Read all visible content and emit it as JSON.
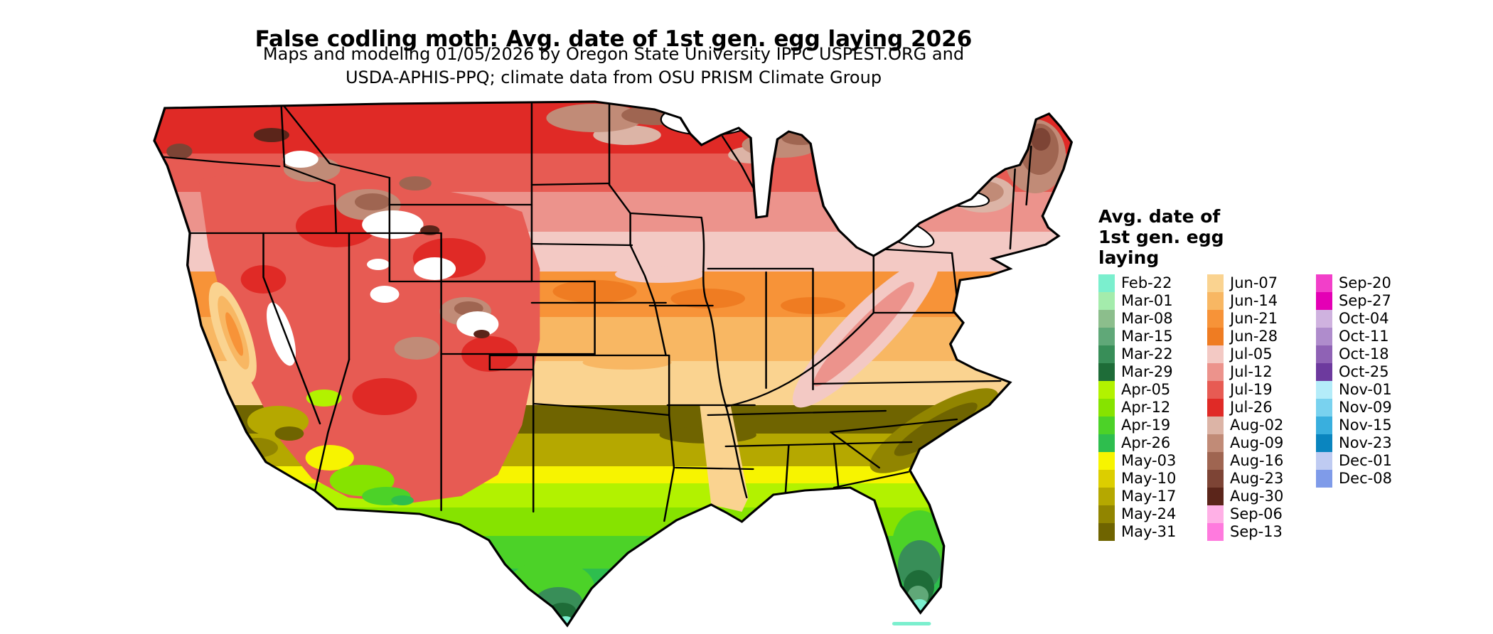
{
  "title": "False codling moth: Avg. date of 1st gen. egg laying 2026",
  "subtitle": {
    "line1": "Maps and modeling 01/05/2026 by Oregon State University IPPC USPEST.ORG and",
    "line2": "USDA-APHIS-PPQ; climate data from OSU PRISM Climate Group"
  },
  "map": {
    "region": "Continental United States",
    "no_data_color": "#FFFFFF",
    "border_color": "#000000"
  },
  "legend": {
    "title_lines": [
      "Avg. date of",
      "1st gen. egg",
      "laying"
    ],
    "columns": [
      [
        {
          "label": "Feb-22",
          "color": "#7BEFCE"
        },
        {
          "label": "Mar-01",
          "color": "#A4ECAC"
        },
        {
          "label": "Mar-08",
          "color": "#8CBE8C"
        },
        {
          "label": "Mar-15",
          "color": "#60A878"
        },
        {
          "label": "Mar-22",
          "color": "#388E58"
        },
        {
          "label": "Mar-29",
          "color": "#1E6C38"
        },
        {
          "label": "Apr-05",
          "color": "#B2F200"
        },
        {
          "label": "Apr-12",
          "color": "#86E300"
        },
        {
          "label": "Apr-19",
          "color": "#4CD228"
        },
        {
          "label": "Apr-26",
          "color": "#2EBE4E"
        },
        {
          "label": "May-03",
          "color": "#F7F400"
        },
        {
          "label": "May-10",
          "color": "#DCCE00"
        },
        {
          "label": "May-17",
          "color": "#B5A800"
        },
        {
          "label": "May-24",
          "color": "#918500"
        },
        {
          "label": "May-31",
          "color": "#6F6400"
        }
      ],
      [
        {
          "label": "Jun-07",
          "color": "#FAD390"
        },
        {
          "label": "Jun-14",
          "color": "#F8B763"
        },
        {
          "label": "Jun-21",
          "color": "#F79338"
        },
        {
          "label": "Jun-28",
          "color": "#EF7C22"
        },
        {
          "label": "Jul-05",
          "color": "#F3C9C4"
        },
        {
          "label": "Jul-12",
          "color": "#EC938C"
        },
        {
          "label": "Jul-19",
          "color": "#E75B53"
        },
        {
          "label": "Jul-26",
          "color": "#E02A26"
        },
        {
          "label": "Aug-02",
          "color": "#DCB4A6"
        },
        {
          "label": "Aug-09",
          "color": "#C18B77"
        },
        {
          "label": "Aug-16",
          "color": "#9F6551"
        },
        {
          "label": "Aug-23",
          "color": "#7D4435"
        },
        {
          "label": "Aug-30",
          "color": "#5B251A"
        },
        {
          "label": "Sep-06",
          "color": "#FFB0E6"
        },
        {
          "label": "Sep-13",
          "color": "#FF7ADE"
        }
      ],
      [
        {
          "label": "Sep-20",
          "color": "#F23FC9"
        },
        {
          "label": "Sep-27",
          "color": "#E400B5"
        },
        {
          "label": "Oct-04",
          "color": "#CFB2DF"
        },
        {
          "label": "Oct-11",
          "color": "#AF8CCC"
        },
        {
          "label": "Oct-18",
          "color": "#8F62B5"
        },
        {
          "label": "Oct-25",
          "color": "#6D3A9E"
        },
        {
          "label": "Nov-01",
          "color": "#B4ECF9"
        },
        {
          "label": "Nov-09",
          "color": "#79D2EF"
        },
        {
          "label": "Nov-15",
          "color": "#39AFDE"
        },
        {
          "label": "Nov-23",
          "color": "#0A85BF"
        },
        {
          "label": "Dec-01",
          "color": "#BFCBF2"
        },
        {
          "label": "Dec-08",
          "color": "#7F9BE9"
        }
      ]
    ]
  }
}
